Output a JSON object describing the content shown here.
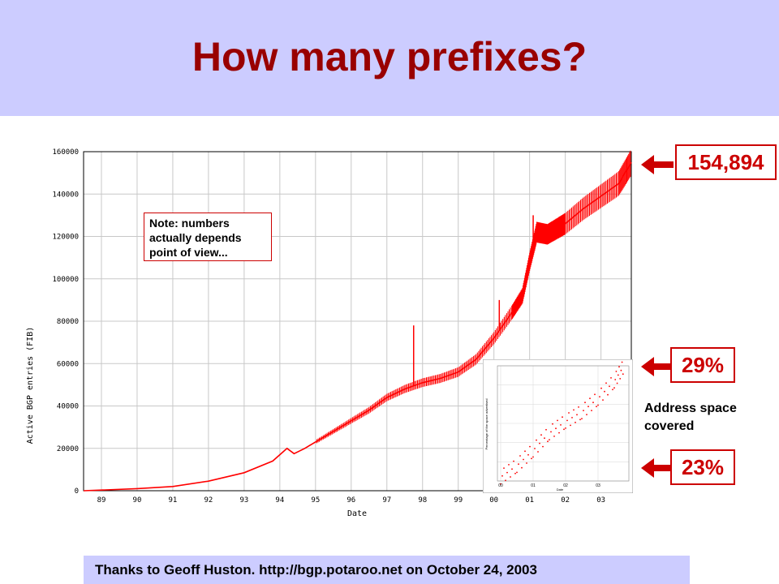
{
  "title": "How many prefixes?",
  "note": "Note: numbers\nactually depends\npoint of view...",
  "callouts": {
    "top_value": "154,894",
    "mid_value": "29%",
    "bottom_value": "23%",
    "address_label": "Address space\ncovered"
  },
  "footer": "Thanks to Geoff Huston. http://bgp.potaroo.net on October 24, 2003",
  "colors": {
    "title": "#990000",
    "accent": "#cc0000",
    "band": "#ccccff",
    "line": "#ff0000"
  },
  "chart_data": [
    {
      "type": "line",
      "title": "",
      "xlabel": "Date",
      "ylabel": "Active BGP entries (FIB)",
      "ylim": [
        0,
        160000
      ],
      "xlim": [
        1988.5,
        2003.85
      ],
      "grid": true,
      "x_ticks": [
        "89",
        "90",
        "91",
        "92",
        "93",
        "94",
        "95",
        "96",
        "97",
        "98",
        "99",
        "00",
        "01",
        "02",
        "03"
      ],
      "y_ticks": [
        "0",
        "20000",
        "40000",
        "60000",
        "80000",
        "100000",
        "120000",
        "140000",
        "160000"
      ],
      "series": [
        {
          "x": [
            1988.5,
            1989.0,
            1990.0,
            1991.0,
            1992.0,
            1993.0,
            1993.8,
            1994.2,
            1994.4,
            1994.7,
            1995.0,
            1995.5,
            1996.0,
            1996.5,
            1997.0,
            1997.5,
            1998.0,
            1998.5,
            1999.0,
            1999.5,
            2000.0,
            2000.5,
            2000.8,
            2001.0,
            2001.2,
            2001.5,
            2001.8,
            2002.0,
            2002.5,
            2003.0,
            2003.5,
            2003.85
          ],
          "y": [
            0,
            300,
            1000,
            2000,
            4500,
            8500,
            14000,
            20000,
            17500,
            20000,
            23000,
            28000,
            33000,
            38000,
            44000,
            48000,
            51000,
            53000,
            56000,
            62000,
            72000,
            84000,
            92000,
            108000,
            122000,
            121000,
            124000,
            126000,
            133000,
            139000,
            145000,
            155000
          ]
        }
      ],
      "spikes": [
        {
          "x": 1997.75,
          "y": 78000
        },
        {
          "x": 2001.1,
          "y": 130000
        },
        {
          "x": 2000.15,
          "y": 90000
        }
      ]
    },
    {
      "type": "scatter",
      "title": "",
      "xlabel": "Date",
      "ylabel": "Percentage of the space advertised",
      "x_ticks": [
        "00",
        "01",
        "02",
        "03"
      ],
      "ylim": [
        23,
        29
      ],
      "series": [
        {
          "x": [
            2000.0,
            2000.5,
            2001.0,
            2001.5,
            2002.0,
            2002.5,
            2003.0,
            2003.5,
            2003.8
          ],
          "y": [
            23.2,
            23.8,
            24.6,
            25.5,
            26.1,
            26.6,
            27.3,
            28.2,
            29.0
          ]
        }
      ]
    }
  ]
}
